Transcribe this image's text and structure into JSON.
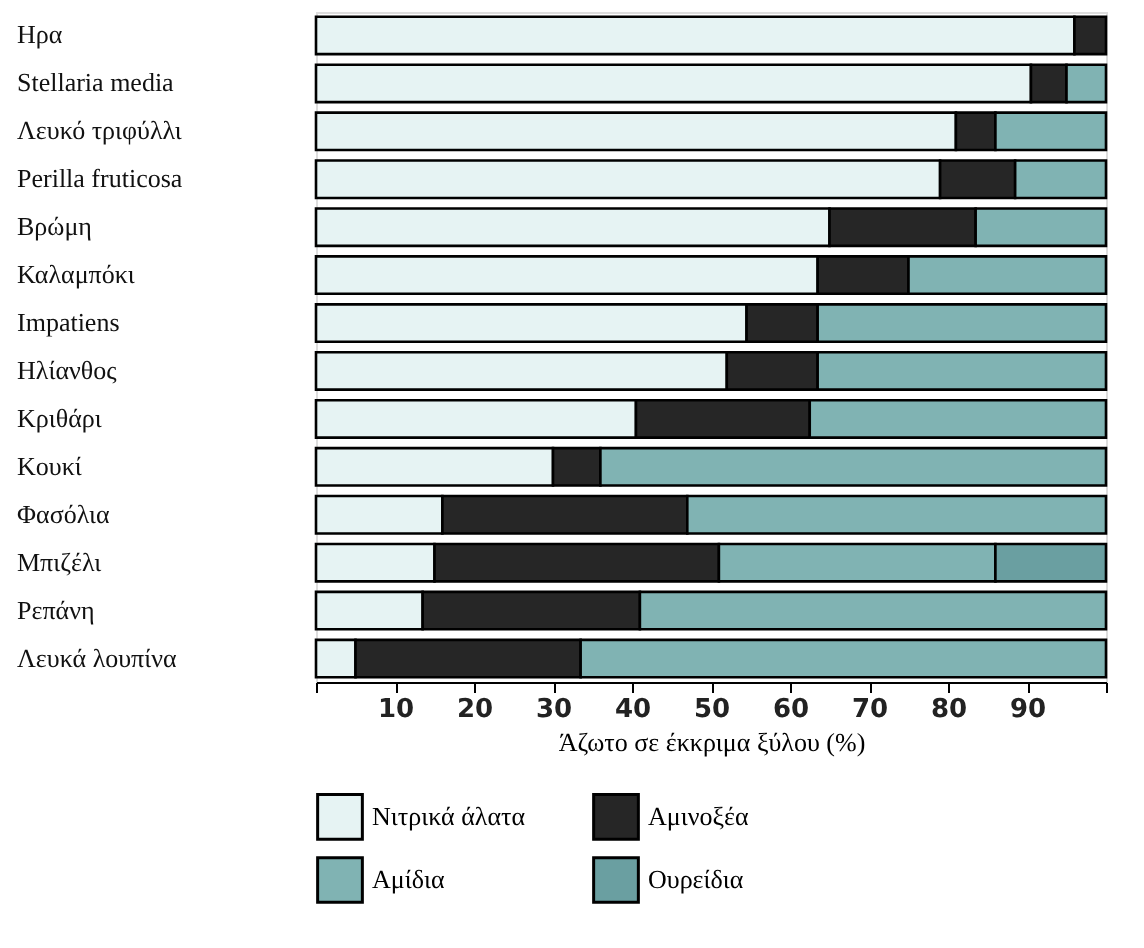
{
  "chart_data": {
    "type": "bar",
    "orientation": "horizontal",
    "stacked": true,
    "categories": [
      "Ηρα",
      "Stellaria media",
      "Λευκό τριφύλλι",
      "Perilla fruticosa",
      "Βρώμη",
      "Καλαμπόκι",
      "Impatiens",
      "Ηλίανθος",
      "Κριθάρι",
      "Κουκί",
      "Φασόλια",
      "Μπιζέλι",
      "Ρεπάνη",
      "Λευκά λουπίνα"
    ],
    "series": [
      {
        "name": "Νιτρικά άλατα",
        "color": "#e6f3f3",
        "values": [
          96,
          90.5,
          81,
          79,
          65,
          63.5,
          54.5,
          52,
          40.5,
          30,
          16,
          15,
          13.5,
          5
        ]
      },
      {
        "name": "Αμινοξέα",
        "color": "#262626",
        "values": [
          4,
          4.5,
          5,
          9.5,
          18.5,
          11.5,
          9,
          11.5,
          22,
          6,
          31,
          36,
          27.5,
          28.5
        ]
      },
      {
        "name": "Αμίδια",
        "color": "#80b3b3",
        "values": [
          null,
          5,
          14,
          11.5,
          16.5,
          25,
          36.5,
          36.5,
          37.5,
          64,
          53,
          35,
          59,
          66.5
        ]
      },
      {
        "name": "Ουρείδια",
        "color": "#6a9fa1",
        "values": [
          null,
          null,
          null,
          null,
          null,
          null,
          null,
          null,
          null,
          null,
          null,
          14,
          null,
          null
        ]
      }
    ],
    "xlim": [
      0,
      100
    ],
    "xticks": [
      {
        "value": 0,
        "label": null
      },
      10,
      20,
      30,
      40,
      50,
      60,
      70,
      80,
      90,
      {
        "value": 100,
        "label": null
      }
    ],
    "xlabel": "Άζωτο σε έκκριμα ξύλου (%)",
    "grid": false,
    "legend": "bottom"
  }
}
